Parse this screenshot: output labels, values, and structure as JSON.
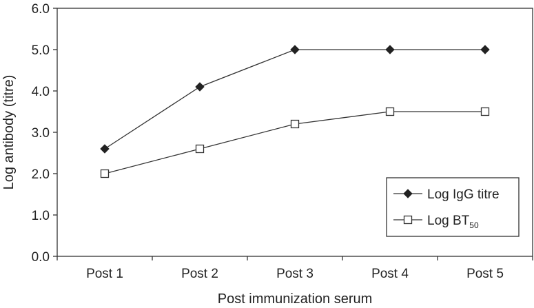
{
  "chart_data": {
    "type": "line",
    "categories": [
      "Post 1",
      "Post 2",
      "Post 3",
      "Post 4",
      "Post 5"
    ],
    "series": [
      {
        "name": "Log IgG titre",
        "marker": "filled-diamond",
        "values": [
          2.6,
          4.1,
          5.0,
          5.0,
          5.0
        ]
      },
      {
        "name": "Log BT",
        "name_subscript": "50",
        "marker": "open-square",
        "values": [
          2.0,
          2.6,
          3.2,
          3.5,
          3.5
        ]
      }
    ],
    "xlabel": "Post immunization serum",
    "ylabel": "Log antibody (titre)",
    "ylim": [
      0,
      6
    ],
    "yticks": [
      "0.0",
      "1.0",
      "2.0",
      "3.0",
      "4.0",
      "5.0",
      "6.0"
    ],
    "grid": false,
    "legend_position": "bottom-right",
    "colors": {
      "line": "#333333",
      "marker_fill": "#222222",
      "background": "#ffffff"
    }
  }
}
